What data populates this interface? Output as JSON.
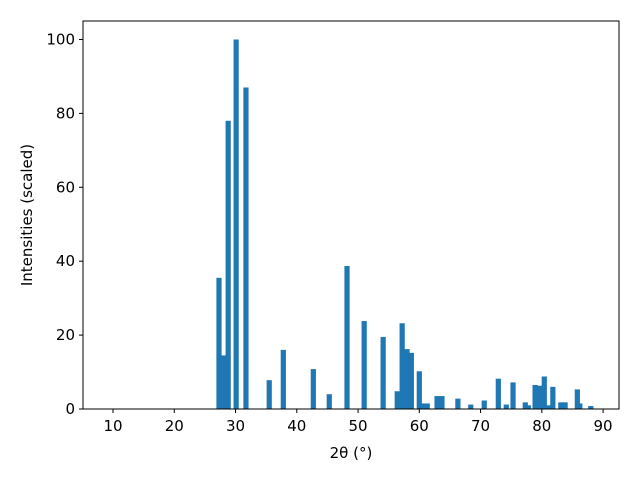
{
  "chart_data": {
    "type": "bar",
    "xlabel": "2θ (°)",
    "ylabel": "Intensities (scaled)",
    "x": [
      27.3,
      28.1,
      28.8,
      30.1,
      31.7,
      35.5,
      37.8,
      42.7,
      45.3,
      48.2,
      51.0,
      54.1,
      56.4,
      57.2,
      58.0,
      58.7,
      60.0,
      60.6,
      61.3,
      62.9,
      63.7,
      66.3,
      68.4,
      70.6,
      72.9,
      74.2,
      75.3,
      77.3,
      77.8,
      78.9,
      79.7,
      80.4,
      81.2,
      81.8,
      83.1,
      83.8,
      85.8,
      86.2,
      88.0
    ],
    "values": [
      35.5,
      14.5,
      78,
      100,
      87,
      7.8,
      16,
      10.8,
      4,
      38.7,
      23.8,
      19.5,
      4.8,
      23.2,
      16.2,
      15.2,
      10.2,
      1.5,
      1.5,
      3.5,
      3.5,
      2.8,
      1.2,
      2.3,
      8.2,
      1.2,
      7.2,
      1.8,
      1.0,
      6.5,
      6.3,
      8.8,
      1.0,
      6.0,
      1.8,
      1.8,
      5.3,
      1.5,
      0.8
    ],
    "color": "#1f77b4",
    "xlim": [
      5.1,
      92.6
    ],
    "ylim": [
      0,
      105
    ],
    "xticks": [
      10,
      20,
      30,
      40,
      50,
      60,
      70,
      80,
      90
    ],
    "yticks": [
      0,
      20,
      40,
      60,
      80,
      100
    ],
    "grid": false
  }
}
